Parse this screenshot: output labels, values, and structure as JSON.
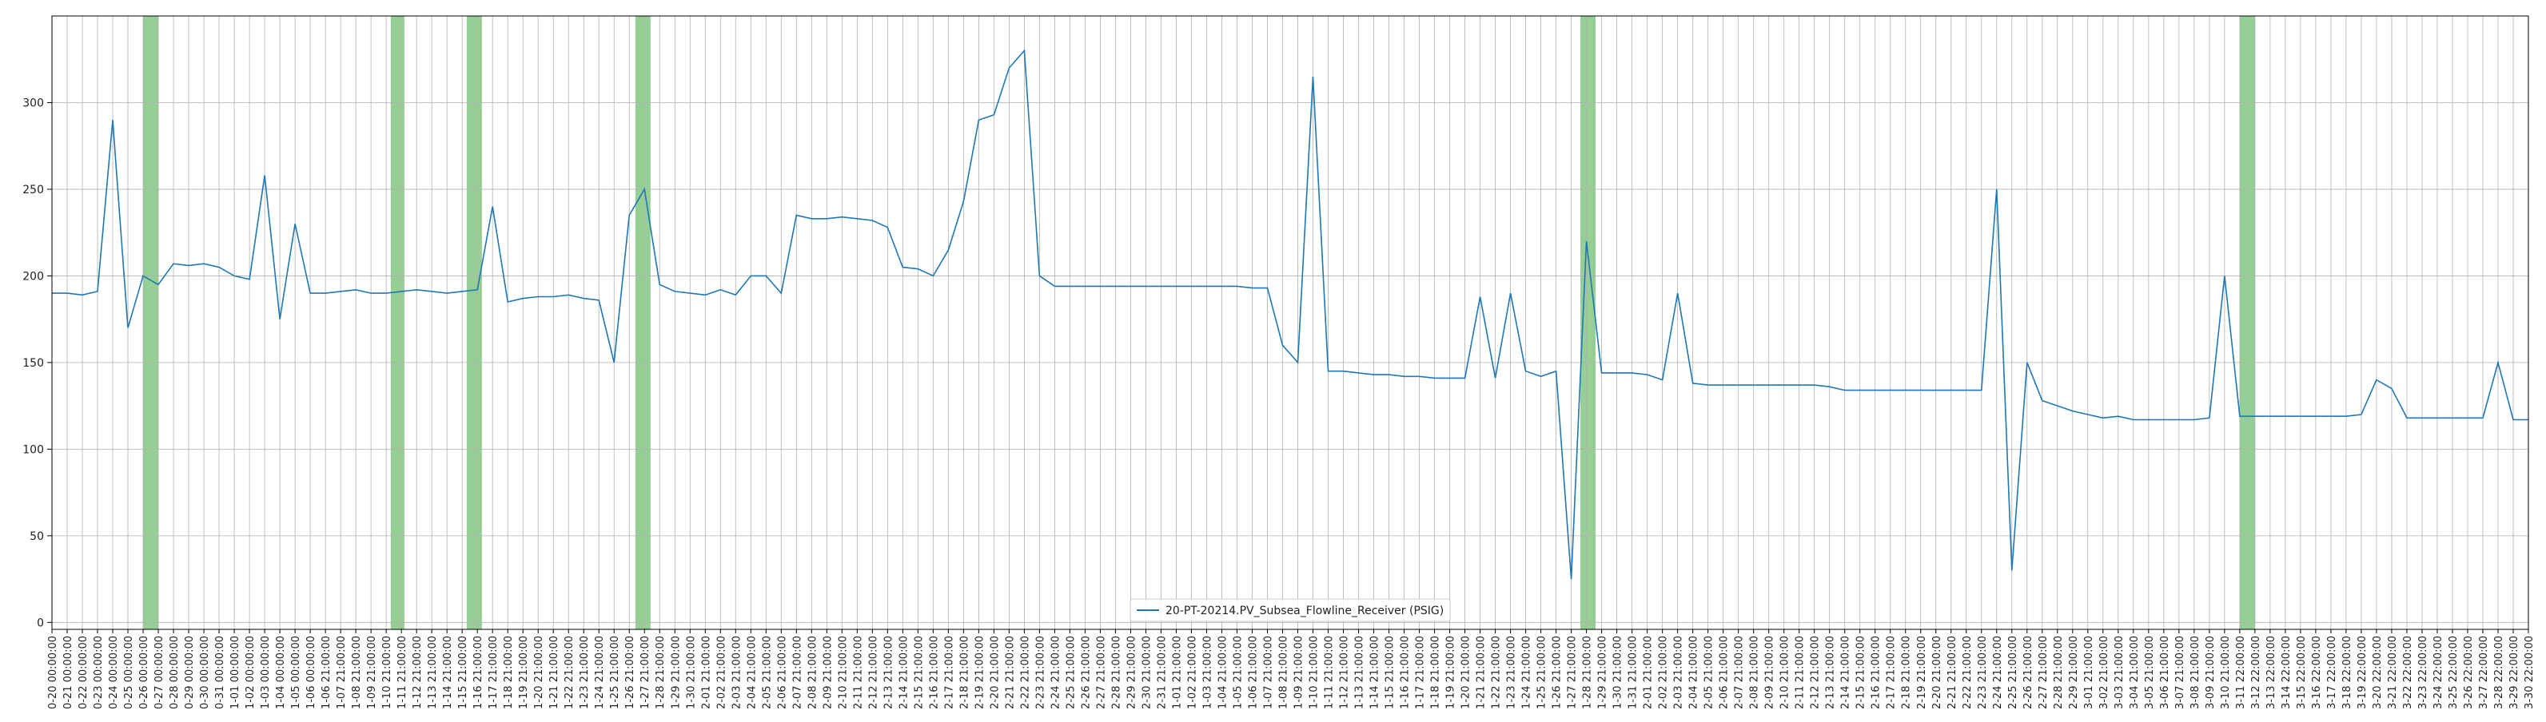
{
  "chart_data": {
    "type": "line",
    "categories": [
      "0-20 00:00:00",
      "0-21 00:00:00",
      "0-22 00:00:00",
      "0-23 00:00:00",
      "0-24 00:00:00",
      "0-25 00:00:00",
      "0-26 00:00:00",
      "0-27 00:00:00",
      "0-28 00:00:00",
      "0-29 00:00:00",
      "0-30 00:00:00",
      "0-31 00:00:00",
      "1-01 00:00:00",
      "1-02 00:00:00",
      "1-03 00:00:00",
      "1-04 00:00:00",
      "1-05 00:00:00",
      "1-06 00:00:00",
      "1-06 21:00:00",
      "1-07 21:00:00",
      "1-08 21:00:00",
      "1-09 21:00:00",
      "1-10 21:00:00",
      "1-11 21:00:00",
      "1-12 21:00:00",
      "1-13 21:00:00",
      "1-14 21:00:00",
      "1-15 21:00:00",
      "1-16 21:00:00",
      "1-17 21:00:00",
      "1-18 21:00:00",
      "1-19 21:00:00",
      "1-20 21:00:00",
      "1-21 21:00:00",
      "1-22 21:00:00",
      "1-23 21:00:00",
      "1-24 21:00:00",
      "1-25 21:00:00",
      "1-26 21:00:00",
      "1-27 21:00:00",
      "1-28 21:00:00",
      "1-29 21:00:00",
      "1-30 21:00:00",
      "2-01 21:00:00",
      "2-02 21:00:00",
      "2-03 21:00:00",
      "2-04 21:00:00",
      "2-05 21:00:00",
      "2-06 21:00:00",
      "2-07 21:00:00",
      "2-08 21:00:00",
      "2-09 21:00:00",
      "2-10 21:00:00",
      "2-11 21:00:00",
      "2-12 21:00:00",
      "2-13 21:00:00",
      "2-14 21:00:00",
      "2-15 21:00:00",
      "2-16 21:00:00",
      "2-17 21:00:00",
      "2-18 21:00:00",
      "2-19 21:00:00",
      "2-20 21:00:00",
      "2-21 21:00:00",
      "2-22 21:00:00",
      "2-23 21:00:00",
      "2-24 21:00:00",
      "2-25 21:00:00",
      "2-26 21:00:00",
      "2-27 21:00:00",
      "2-28 21:00:00",
      "2-29 21:00:00",
      "2-30 21:00:00",
      "2-31 21:00:00",
      "1-01 21:00:00",
      "1-02 21:00:00",
      "1-03 21:00:00",
      "1-04 21:00:00",
      "1-05 21:00:00",
      "1-06 21:00:00",
      "1-07 21:00:00",
      "1-08 21:00:00",
      "1-09 21:00:00",
      "1-10 21:00:00",
      "1-11 21:00:00",
      "1-12 21:00:00",
      "1-13 21:00:00",
      "1-14 21:00:00",
      "1-15 21:00:00",
      "1-16 21:00:00",
      "1-17 21:00:00",
      "1-18 21:00:00",
      "1-19 21:00:00",
      "1-20 21:00:00",
      "1-21 21:00:00",
      "1-22 21:00:00",
      "1-23 21:00:00",
      "1-24 21:00:00",
      "1-25 21:00:00",
      "1-26 21:00:00",
      "1-27 21:00:00",
      "1-28 21:00:00",
      "1-29 21:00:00",
      "1-30 21:00:00",
      "1-31 21:00:00",
      "2-01 21:00:00",
      "2-02 21:00:00",
      "2-03 21:00:00",
      "2-04 21:00:00",
      "2-05 21:00:00",
      "2-06 21:00:00",
      "2-07 21:00:00",
      "2-08 21:00:00",
      "2-09 21:00:00",
      "2-10 21:00:00",
      "2-11 21:00:00",
      "2-12 21:00:00",
      "2-13 21:00:00",
      "2-14 21:00:00",
      "2-15 21:00:00",
      "2-16 21:00:00",
      "2-17 21:00:00",
      "2-18 21:00:00",
      "2-19 21:00:00",
      "2-20 21:00:00",
      "2-21 21:00:00",
      "2-22 21:00:00",
      "2-23 21:00:00",
      "2-24 21:00:00",
      "2-25 21:00:00",
      "2-26 21:00:00",
      "2-27 21:00:00",
      "2-28 21:00:00",
      "2-29 21:00:00",
      "3-01 21:00:00",
      "3-02 21:00:00",
      "3-03 21:00:00",
      "3-04 21:00:00",
      "3-05 21:00:00",
      "3-06 21:00:00",
      "3-07 21:00:00",
      "3-08 21:00:00",
      "3-09 21:00:00",
      "3-10 21:00:00",
      "3-11 22:00:00",
      "3-12 22:00:00",
      "3-13 22:00:00",
      "3-14 22:00:00",
      "3-15 22:00:00",
      "3-16 22:00:00",
      "3-17 22:00:00",
      "3-18 22:00:00",
      "3-19 22:00:00",
      "3-20 22:00:00",
      "3-21 22:00:00",
      "3-22 22:00:00",
      "3-23 22:00:00",
      "3-24 22:00:00",
      "3-25 22:00:00",
      "3-26 22:00:00",
      "3-27 22:00:00",
      "3-28 22:00:00",
      "3-29 22:00:00",
      "3-30 22:00:00"
    ],
    "series": [
      {
        "name": "20-PT-20214.PV_Subsea_Flowline_Receiver (PSIG)",
        "color": "#1f77b4",
        "values": [
          190,
          190,
          189,
          191,
          290,
          170,
          200,
          195,
          207,
          206,
          207,
          205,
          200,
          198,
          258,
          175,
          230,
          190,
          190,
          191,
          192,
          190,
          190,
          191,
          192,
          191,
          190,
          191,
          192,
          240,
          185,
          187,
          188,
          188,
          189,
          187,
          186,
          150,
          235,
          250,
          195,
          191,
          190,
          189,
          192,
          189,
          200,
          200,
          190,
          235,
          233,
          233,
          234,
          233,
          232,
          228,
          205,
          204,
          200,
          215,
          243,
          290,
          293,
          320,
          330,
          200,
          194,
          194,
          194,
          194,
          194,
          194,
          194,
          194,
          194,
          194,
          194,
          194,
          194,
          193,
          193,
          160,
          150,
          315,
          145,
          145,
          144,
          143,
          143,
          142,
          142,
          141,
          141,
          141,
          188,
          141,
          190,
          145,
          142,
          145,
          25,
          220,
          144,
          144,
          144,
          143,
          140,
          190,
          138,
          137,
          137,
          137,
          137,
          137,
          137,
          137,
          137,
          136,
          134,
          134,
          134,
          134,
          134,
          134,
          134,
          134,
          134,
          134,
          250,
          30,
          150,
          128,
          125,
          122,
          120,
          118,
          119,
          117,
          117,
          117,
          117,
          117,
          118,
          200,
          119,
          119,
          119,
          119,
          119,
          119,
          119,
          119,
          120,
          140,
          135,
          118,
          118,
          118,
          118,
          118,
          118,
          150,
          117,
          117
        ]
      }
    ],
    "highlight_spans": [
      [
        6,
        7
      ],
      [
        22.3,
        23.2
      ],
      [
        27.3,
        28.3
      ],
      [
        38.4,
        39.4
      ],
      [
        100.6,
        101.6
      ],
      [
        144,
        145
      ]
    ],
    "highlight_color": "#2ca02c",
    "ylim": [
      -4,
      350
    ],
    "yticks": [
      0,
      50,
      100,
      150,
      200,
      250,
      300
    ],
    "grid": true,
    "legend": "lower center"
  }
}
